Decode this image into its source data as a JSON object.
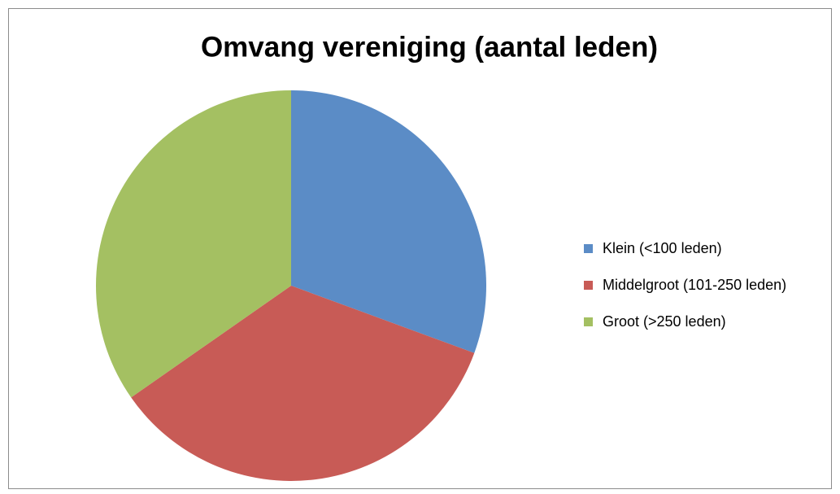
{
  "chart_data": {
    "type": "pie",
    "title": "Omvang vereniging (aantal leden)",
    "categories": [
      "Klein (<100 leden)",
      "Middelgroot (101-250 leden)",
      "Groot (>250 leden)"
    ],
    "values": [
      30.6,
      34.7,
      34.7
    ],
    "colors": [
      "#5b8cc6",
      "#c85b56",
      "#a4c062"
    ],
    "legend": "right"
  }
}
